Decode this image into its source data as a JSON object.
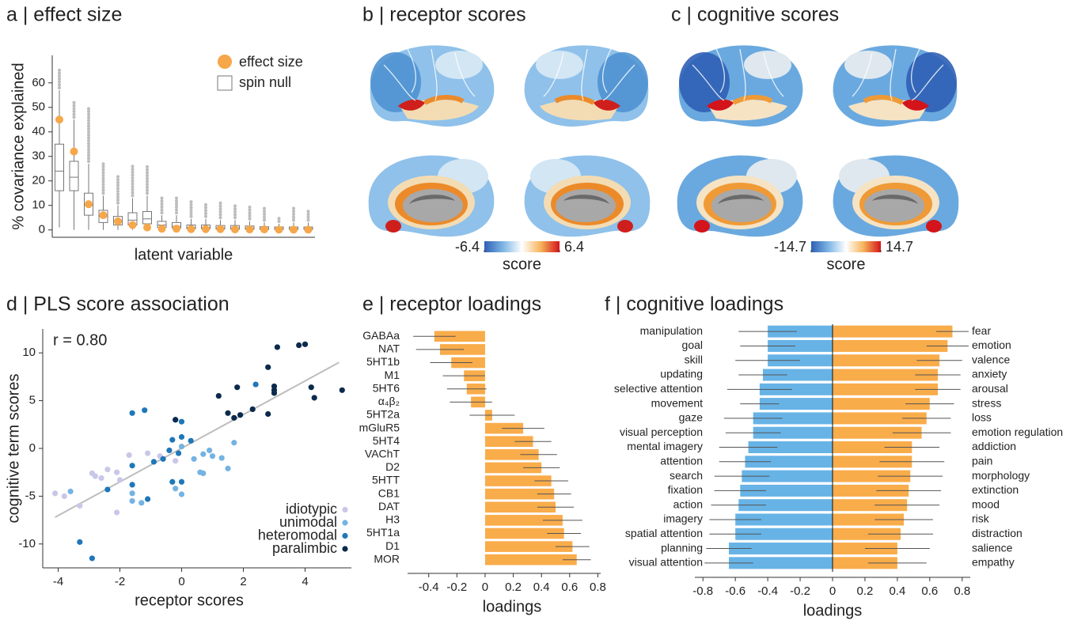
{
  "chart_data": [
    {
      "type": "box",
      "title": "a | effect size",
      "ylabel": "% covariance explained",
      "xlabel": "latent variable",
      "ylim": [
        -3,
        68
      ],
      "yticks": [
        0,
        10,
        20,
        30,
        40,
        50,
        60
      ],
      "series": [
        {
          "name": "effect size",
          "color": "#f6a74a",
          "values": [
            45,
            32,
            10.5,
            6,
            3.5,
            2,
            1,
            0.5,
            0.5,
            0.3,
            0.3,
            0.3,
            0.2,
            0.2,
            0.2,
            0.1,
            0.1,
            0.1
          ]
        },
        {
          "name": "spin null",
          "color": "#777777",
          "whisker_low": [
            1,
            0,
            0,
            0,
            0,
            0,
            0,
            0,
            0,
            0,
            0,
            0,
            0,
            0,
            0,
            0,
            0,
            0
          ],
          "q1": [
            16,
            16,
            6,
            3,
            2,
            2,
            2.5,
            1,
            0.8,
            0.5,
            0.5,
            0.3,
            0.3,
            0.3,
            0.2,
            0.2,
            0.2,
            0.2
          ],
          "median": [
            24,
            21.5,
            10,
            5.5,
            3.5,
            4,
            4.5,
            2,
            1.5,
            1,
            1,
            0.8,
            0.8,
            0.7,
            0.5,
            0.5,
            0.5,
            0.5
          ],
          "q3": [
            35,
            28,
            15,
            8,
            5.5,
            7,
            7.5,
            3.5,
            3,
            2,
            2,
            1.8,
            1.8,
            1.6,
            1.3,
            1.2,
            1.2,
            1.2
          ],
          "whisker_high": [
            57,
            45,
            27,
            14,
            10,
            13,
            14,
            6,
            6,
            4.5,
            4.5,
            4,
            4,
            3.5,
            3,
            2.5,
            3,
            3
          ],
          "outlier_max": [
            66,
            53,
            50,
            27,
            22,
            26,
            26,
            13,
            13,
            12,
            11,
            11,
            10,
            10,
            9,
            5,
            9,
            8
          ]
        }
      ]
    },
    {
      "type": "surface",
      "title": "b | receptor scores",
      "colorbar": {
        "lim": [
          -6.4,
          6.4
        ],
        "ticks": [
          -6.4,
          6.4
        ],
        "label": "score",
        "colors": [
          "#2f5fb5",
          "#7fb6e4",
          "#ffffff",
          "#f6b45a",
          "#d3141b"
        ]
      }
    },
    {
      "type": "surface",
      "title": "c | cognitive scores",
      "colorbar": {
        "lim": [
          -14.7,
          14.7
        ],
        "ticks": [
          -14.7,
          14.7
        ],
        "label": "score",
        "colors": [
          "#2f5fb5",
          "#7fb6e4",
          "#ffffff",
          "#f6b45a",
          "#d3141b"
        ]
      }
    },
    {
      "type": "scatter",
      "title": "d | PLS score association",
      "annotation": "r = 0.80",
      "xlabel": "receptor scores",
      "ylabel": "cognitive term scores",
      "xlim": [
        -4.5,
        5.5
      ],
      "xticks": [
        -4,
        -2,
        0,
        2,
        4
      ],
      "ylim": [
        -12.5,
        12.5
      ],
      "yticks": [
        -10,
        -5,
        0,
        5,
        10
      ],
      "legend": "lower right",
      "trend_line": {
        "color": "#bdbdbd",
        "x": [
          -4.1,
          5.1
        ],
        "y": [
          -7.2,
          9.0
        ]
      },
      "series": [
        {
          "name": "idiotypic",
          "color": "#c9c7e8",
          "x": [
            -4.1,
            -3.8,
            -3.3,
            -2.9,
            -2.8,
            -2.6,
            -2.4,
            -2.1,
            -2.0,
            -2.1,
            -1.7,
            -1.1,
            -0.7,
            -0.2
          ],
          "y": [
            -4.7,
            -5.0,
            -6.0,
            -2.6,
            -2.9,
            -3.1,
            -2.2,
            -2.5,
            -3.3,
            -6.7,
            -0.7,
            -0.5,
            -0.8,
            -1.3
          ]
        },
        {
          "name": "unimodal",
          "color": "#74b3e2",
          "x": [
            -3.6,
            -1.6,
            -1.3,
            -1.6,
            -0.2,
            0.0,
            0.4,
            0.6,
            0.7,
            0.7,
            0.9,
            1.0,
            1.3,
            1.5,
            1.7,
            0.0
          ],
          "y": [
            -4.5,
            -5.5,
            -5.7,
            -4.7,
            -4.2,
            -4.8,
            -1.1,
            -2.5,
            -2.6,
            -0.6,
            -0.2,
            -0.8,
            -1.0,
            -2.1,
            0.6,
            0.2
          ]
        },
        {
          "name": "heteromodal",
          "color": "#1f77b8",
          "x": [
            -3.3,
            -2.9,
            -2.4,
            -1.6,
            -1.2,
            -1.6,
            -1.6,
            -1.1,
            -0.9,
            -0.6,
            -0.4,
            -0.3,
            0.0,
            0.0,
            -0.3,
            -0.2,
            0.0,
            0.3,
            -0.1,
            2.4
          ],
          "y": [
            -9.8,
            -11.5,
            -4.3,
            3.7,
            4.0,
            -3.8,
            -1.8,
            -5.3,
            -1.4,
            -1.1,
            -0.2,
            -3.5,
            -3.5,
            1.2,
            0.9,
            3.0,
            2.8,
            0.8,
            -0.5,
            6.7
          ]
        },
        {
          "name": "paralimbic",
          "color": "#0b2a4c",
          "x": [
            -0.2,
            1.2,
            1.5,
            1.7,
            1.8,
            1.9,
            2.8,
            2.8,
            3.0,
            3.0,
            3.0,
            3.1,
            3.8,
            4.0,
            4.2,
            4.3,
            5.2,
            2.3
          ],
          "y": [
            3.0,
            5.5,
            3.7,
            3.2,
            6.4,
            3.5,
            8.5,
            3.6,
            5.8,
            6.1,
            6.5,
            10.6,
            10.8,
            10.9,
            6.4,
            5.3,
            6.1,
            4.1
          ]
        }
      ]
    },
    {
      "type": "bar",
      "title": "e | receptor loadings",
      "xlabel": "loadings",
      "xlim": [
        -0.55,
        0.82
      ],
      "xticks": [
        -0.4,
        -0.2,
        0,
        0.2,
        0.4,
        0.6,
        0.8
      ],
      "series": [
        {
          "color": "#f9ac4a",
          "categories": [
            "GABAa",
            "NAT",
            "5HT1b",
            "M1",
            "5HT6",
            "α₄β₂",
            "5HT2a",
            "mGluR5",
            "5HT4",
            "VAChT",
            "D2",
            "5HTT",
            "CB1",
            "DAT",
            "H3",
            "5HT1a",
            "D1",
            "MOR"
          ],
          "values": [
            -0.36,
            -0.32,
            -0.24,
            -0.15,
            -0.13,
            -0.1,
            0.05,
            0.27,
            0.34,
            0.38,
            0.4,
            0.47,
            0.49,
            0.5,
            0.55,
            0.56,
            0.62,
            0.65
          ],
          "errors": [
            0.15,
            0.17,
            0.15,
            0.15,
            0.14,
            0.15,
            0.16,
            0.15,
            0.13,
            0.13,
            0.13,
            0.12,
            0.12,
            0.13,
            0.14,
            0.12,
            0.12,
            0.1
          ]
        }
      ]
    },
    {
      "type": "bar",
      "title": "f | cognitive loadings",
      "xlabel": "loadings",
      "zero_line": true,
      "xlim": [
        -0.85,
        0.85
      ],
      "xticks": [
        -0.8,
        -0.6,
        -0.4,
        -0.2,
        0,
        0.2,
        0.4,
        0.6,
        0.8
      ],
      "series": [
        {
          "color": "#67b3e6",
          "categories": [
            "manipulation",
            "goal",
            "skill",
            "updating",
            "selective attention",
            "movement",
            "gaze",
            "visual perception",
            "mental imagery",
            "attention",
            "search",
            "fixation",
            "action",
            "imagery",
            "spatial attention",
            "planning",
            "visual attention"
          ],
          "values": [
            -0.4,
            -0.4,
            -0.4,
            -0.43,
            -0.45,
            -0.45,
            -0.49,
            -0.49,
            -0.52,
            -0.54,
            -0.56,
            -0.57,
            -0.58,
            -0.6,
            -0.6,
            -0.64,
            -0.64
          ],
          "errors": [
            0.18,
            0.17,
            0.2,
            0.15,
            0.2,
            0.12,
            0.18,
            0.17,
            0.18,
            0.16,
            0.17,
            0.16,
            0.17,
            0.16,
            0.16,
            0.14,
            0.15
          ]
        },
        {
          "color": "#f9ac4a",
          "categories": [
            "fear",
            "emotion",
            "valence",
            "anxiety",
            "arousal",
            "stress",
            "loss",
            "emotion regulation",
            "addiction",
            "pain",
            "morphology",
            "extinction",
            "mood",
            "risk",
            "distraction",
            "salience",
            "empathy"
          ],
          "values": [
            0.74,
            0.71,
            0.66,
            0.65,
            0.65,
            0.6,
            0.58,
            0.55,
            0.49,
            0.49,
            0.48,
            0.47,
            0.46,
            0.44,
            0.42,
            0.4,
            0.4
          ],
          "errors": [
            0.1,
            0.13,
            0.14,
            0.14,
            0.14,
            0.15,
            0.15,
            0.18,
            0.17,
            0.2,
            0.2,
            0.2,
            0.2,
            0.18,
            0.2,
            0.2,
            0.18
          ]
        }
      ]
    }
  ]
}
